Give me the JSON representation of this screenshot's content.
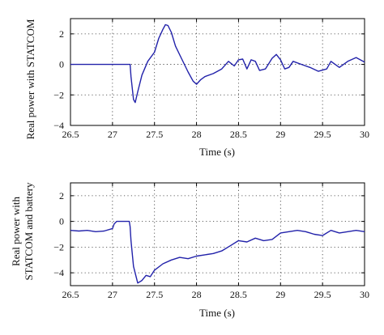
{
  "chart_data": [
    {
      "type": "line",
      "ylabel": "Real power with STATCOM",
      "xlabel": "Time (s)",
      "xlim": [
        26.5,
        30
      ],
      "ylim": [
        -4,
        3
      ],
      "xticks": [
        26.5,
        27,
        27.5,
        28,
        28.5,
        29,
        29.5,
        30
      ],
      "yticks": [
        -4,
        -2,
        0,
        2
      ],
      "grid": true,
      "color": "#2222aa",
      "series": [
        {
          "x": [
            26.5,
            27.0,
            27.2,
            27.21,
            27.22,
            27.25,
            27.27,
            27.3,
            27.35,
            27.42,
            27.5,
            27.55,
            27.6,
            27.63,
            27.66,
            27.7,
            27.75,
            27.82,
            27.9,
            27.96,
            28.0,
            28.05,
            28.1,
            28.2,
            28.3,
            28.38,
            28.45,
            28.5,
            28.55,
            28.6,
            28.65,
            28.7,
            28.75,
            28.82,
            28.9,
            28.95,
            29.0,
            29.05,
            29.1,
            29.15,
            29.25,
            29.35,
            29.45,
            29.55,
            29.6,
            29.7,
            29.8,
            29.9,
            30.0
          ],
          "y": [
            0.0,
            0.0,
            0.0,
            0.0,
            -0.8,
            -2.3,
            -2.5,
            -1.8,
            -0.7,
            0.2,
            0.8,
            1.7,
            2.3,
            2.6,
            2.55,
            2.1,
            1.2,
            0.4,
            -0.5,
            -1.1,
            -1.3,
            -1.0,
            -0.8,
            -0.6,
            -0.3,
            0.2,
            -0.1,
            0.3,
            0.35,
            -0.3,
            0.3,
            0.2,
            -0.4,
            -0.3,
            0.4,
            0.65,
            0.3,
            -0.3,
            -0.2,
            0.2,
            0.0,
            -0.2,
            -0.45,
            -0.3,
            0.2,
            -0.2,
            0.2,
            0.45,
            0.15
          ]
        }
      ]
    },
    {
      "type": "line",
      "ylabel": "Real power with STATCOM and battery",
      "xlabel": "Time (s)",
      "xlim": [
        26.5,
        30
      ],
      "ylim": [
        -5,
        3
      ],
      "xticks": [
        26.5,
        27,
        27.5,
        28,
        28.5,
        29,
        29.5,
        30
      ],
      "yticks": [
        -4,
        -2,
        0,
        2
      ],
      "grid": true,
      "color": "#2222aa",
      "series": [
        {
          "x": [
            26.5,
            26.6,
            26.7,
            26.8,
            26.9,
            27.0,
            27.02,
            27.05,
            27.2,
            27.21,
            27.22,
            27.25,
            27.3,
            27.35,
            27.4,
            27.45,
            27.5,
            27.6,
            27.7,
            27.8,
            27.9,
            28.0,
            28.1,
            28.2,
            28.3,
            28.4,
            28.5,
            28.6,
            28.7,
            28.8,
            28.9,
            29.0,
            29.1,
            29.2,
            29.3,
            29.4,
            29.5,
            29.6,
            29.7,
            29.8,
            29.9,
            30.0
          ],
          "y": [
            -0.7,
            -0.75,
            -0.7,
            -0.8,
            -0.75,
            -0.55,
            -0.2,
            0.0,
            0.0,
            -0.4,
            -1.5,
            -3.5,
            -4.8,
            -4.6,
            -4.2,
            -4.3,
            -3.8,
            -3.3,
            -3.0,
            -2.8,
            -2.9,
            -2.7,
            -2.6,
            -2.5,
            -2.3,
            -1.9,
            -1.5,
            -1.6,
            -1.3,
            -1.5,
            -1.4,
            -0.9,
            -0.8,
            -0.7,
            -0.8,
            -1.0,
            -1.1,
            -0.7,
            -0.9,
            -0.8,
            -0.7,
            -0.8
          ]
        }
      ]
    }
  ]
}
